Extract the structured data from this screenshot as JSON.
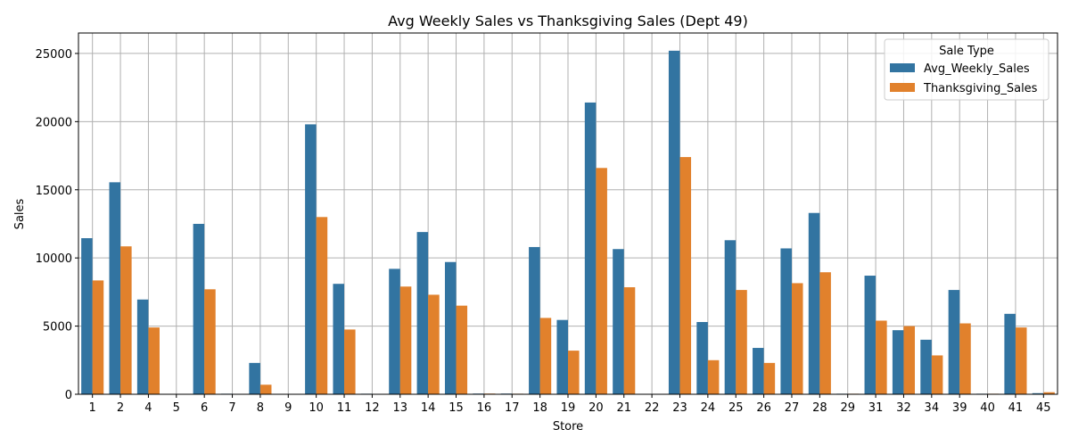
{
  "chart_data": {
    "type": "bar",
    "title": "Avg Weekly Sales vs Thanksgiving Sales (Dept 49)",
    "xlabel": "Store",
    "ylabel": "Sales",
    "ylim": [
      0,
      26500
    ],
    "yticks": [
      0,
      5000,
      10000,
      15000,
      20000,
      25000
    ],
    "grid": true,
    "legend": {
      "title": "Sale Type",
      "placement": "top-right"
    },
    "categories": [
      "1",
      "2",
      "4",
      "5",
      "6",
      "7",
      "8",
      "9",
      "10",
      "11",
      "12",
      "13",
      "14",
      "15",
      "16",
      "17",
      "18",
      "19",
      "20",
      "21",
      "22",
      "23",
      "24",
      "25",
      "26",
      "27",
      "28",
      "29",
      "31",
      "32",
      "34",
      "39",
      "40",
      "41",
      "45"
    ],
    "series": [
      {
        "name": "Avg_Weekly_Sales",
        "color": "#3274a1",
        "values": [
          11450,
          15550,
          6950,
          30,
          12500,
          40,
          2300,
          30,
          19800,
          8100,
          40,
          9200,
          11900,
          9700,
          50,
          50,
          10800,
          5450,
          21400,
          10650,
          0,
          25200,
          5300,
          11300,
          3400,
          10700,
          13300,
          40,
          8700,
          4700,
          4000,
          7650,
          40,
          5900,
          80
        ]
      },
      {
        "name": "Thanksgiving_Sales",
        "color": "#e1812c",
        "values": [
          8350,
          10850,
          4900,
          30,
          7700,
          20,
          700,
          30,
          13000,
          4750,
          0,
          7900,
          7300,
          6500,
          50,
          40,
          5600,
          3200,
          16600,
          7850,
          30,
          17400,
          2500,
          7650,
          2300,
          8150,
          8950,
          40,
          5400,
          5000,
          2850,
          5200,
          40,
          4900,
          150
        ]
      }
    ]
  }
}
